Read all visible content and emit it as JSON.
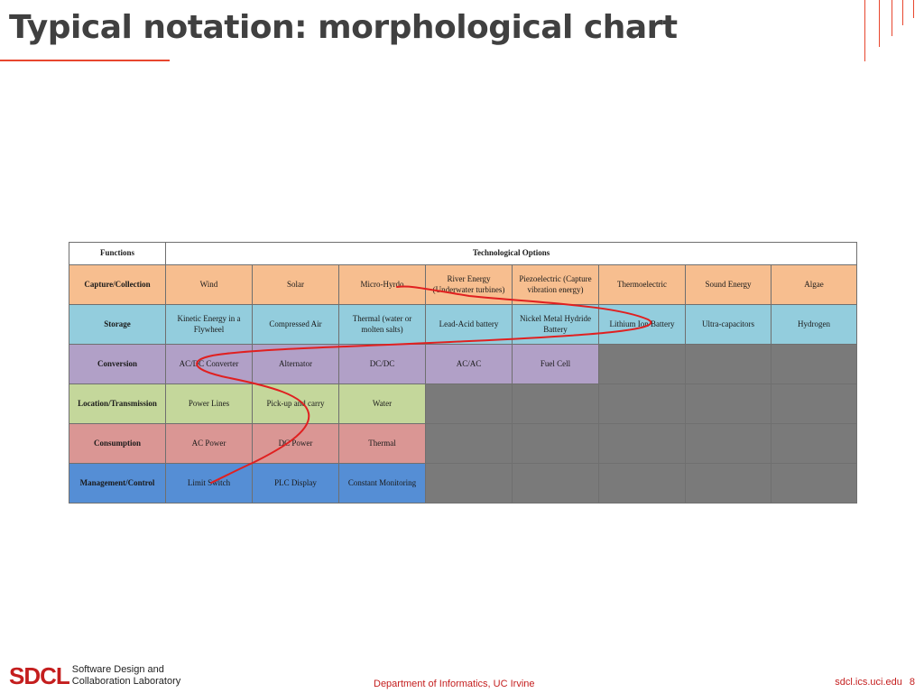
{
  "slide": {
    "title": "Typical notation: morphological chart"
  },
  "table": {
    "header_functions": "Functions",
    "header_options": "Technological Options",
    "gray_color": "#7a7a7a",
    "rows": [
      {
        "function": "Capture/Collection",
        "color": "#f7be8f",
        "options": [
          "Wind",
          "Solar",
          "Micro-Hyrdo",
          "River Energy (Underwater turbines)",
          "Piezoelectric (Capture vibration energy)",
          "Thermoelectric",
          "Sound Energy",
          "Algae"
        ]
      },
      {
        "function": "Storage",
        "color": "#93cddd",
        "options": [
          "Kinetic Energy in a Flywheel",
          "Compressed Air",
          "Thermal (water or molten salts)",
          "Lead-Acid battery",
          "Nickel Metal Hydride Battery",
          "Lithium Ion Battery",
          "Ultra-capacitors",
          "Hydrogen"
        ]
      },
      {
        "function": "Conversion",
        "color": "#b1a0c7",
        "options": [
          "AC/DC Converter",
          "Alternator",
          "DC/DC",
          "AC/AC",
          "Fuel Cell"
        ]
      },
      {
        "function": "Location/Transmission",
        "color": "#c4d79b",
        "options": [
          "Power Lines",
          "Pick-up and carry",
          "Water"
        ]
      },
      {
        "function": "Consumption",
        "color": "#da9694",
        "options": [
          "AC Power",
          "DC Power",
          "Thermal"
        ]
      },
      {
        "function": "Management/Control",
        "color": "#558ed5",
        "options": [
          "Limit Switch",
          "PLC Display",
          "Constant Monitoring"
        ]
      }
    ],
    "selected_path": [
      "Micro-Hyrdo",
      "Lithium Ion Battery",
      "AC/DC Converter",
      "Pick-up and carry",
      "Limit Switch"
    ],
    "path_color": "#e02020"
  },
  "footer": {
    "logo_mark": "SDCL",
    "logo_line1": "Software Design and",
    "logo_line2": "Collaboration Laboratory",
    "department": "Department of Informatics, UC Irvine",
    "url": "sdcl.ics.uci.edu",
    "page_number": "8"
  },
  "colors": {
    "accent": "#e8462e",
    "footer_red": "#c41e1e",
    "title_gray": "#404040"
  }
}
